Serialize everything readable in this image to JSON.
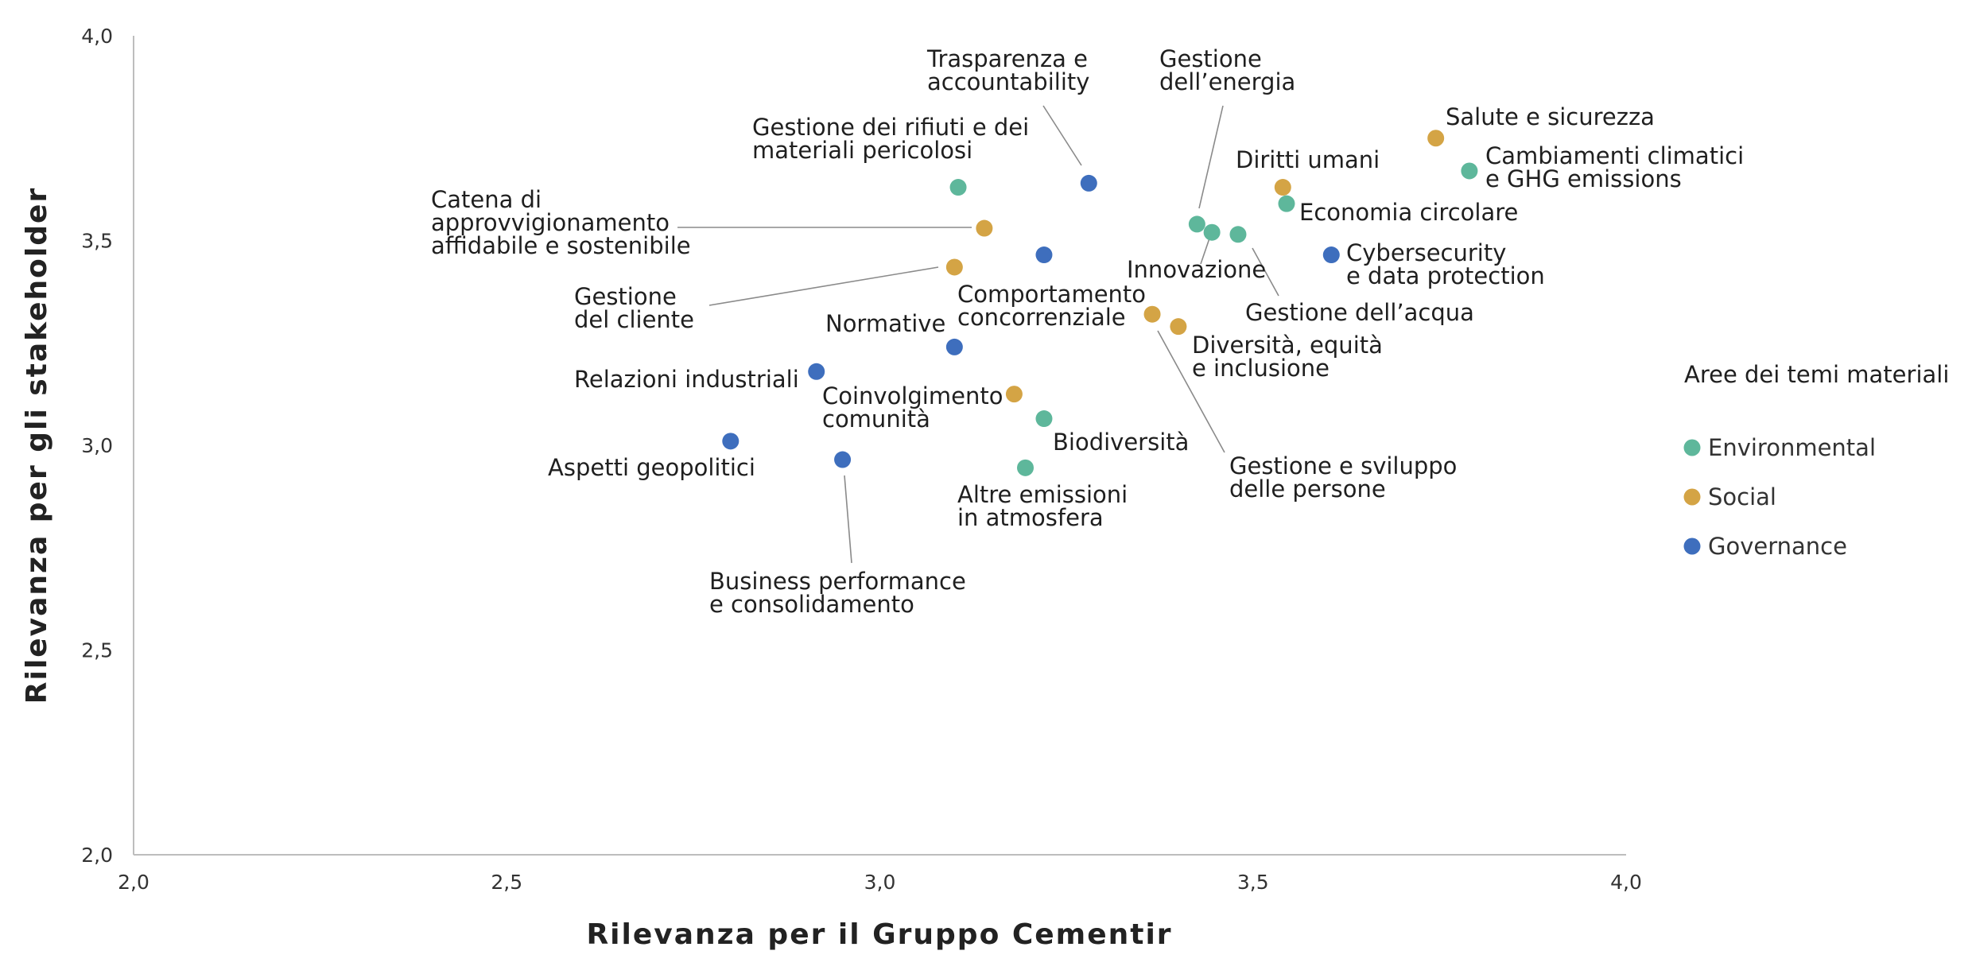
{
  "chart_data": {
    "type": "scatter",
    "title": "",
    "xlabel": "Rilevanza per il Gruppo Cementir",
    "ylabel": "Rilevanza per gli stakeholder",
    "xlim": [
      2.0,
      4.0
    ],
    "ylim": [
      2.0,
      4.0
    ],
    "x_ticks": [
      "2,0",
      "2,5",
      "3,0",
      "3,5",
      "4,0"
    ],
    "y_ticks": [
      "2,0",
      "2,5",
      "3,0",
      "3,5",
      "4,0"
    ],
    "grid": false,
    "legend": {
      "title": "Aree dei temi materiali",
      "placement": "right",
      "entries": [
        {
          "name": "Environmental",
          "color": "#5eb79b"
        },
        {
          "name": "Social",
          "color": "#d4a445"
        },
        {
          "name": "Governance",
          "color": "#3e6ebd"
        }
      ]
    },
    "points": [
      {
        "id": "salute",
        "lines": [
          "Salute e sicurezza"
        ],
        "x": 3.745,
        "y": 3.75,
        "area": "Social"
      },
      {
        "id": "clima",
        "lines": [
          "Cambiamenti climatici",
          "e GHG emissions"
        ],
        "x": 3.79,
        "y": 3.67,
        "area": "Environmental"
      },
      {
        "id": "diritti",
        "lines": [
          "Diritti umani"
        ],
        "x": 3.54,
        "y": 3.63,
        "area": "Social"
      },
      {
        "id": "economia",
        "lines": [
          "Economia circolare"
        ],
        "x": 3.545,
        "y": 3.59,
        "area": "Environmental"
      },
      {
        "id": "cyber",
        "lines": [
          "Cybersecurity",
          "e data protection"
        ],
        "x": 3.605,
        "y": 3.465,
        "area": "Governance"
      },
      {
        "id": "energia",
        "lines": [
          "Gestione",
          "dell’energia"
        ],
        "x": 3.425,
        "y": 3.54,
        "area": "Environmental"
      },
      {
        "id": "innovazione",
        "lines": [
          "Innovazione"
        ],
        "x": 3.445,
        "y": 3.52,
        "area": "Environmental"
      },
      {
        "id": "acqua",
        "lines": [
          "Gestione dell’acqua"
        ],
        "x": 3.48,
        "y": 3.515,
        "area": "Environmental"
      },
      {
        "id": "trasparenza",
        "lines": [
          "Trasparenza e",
          "accountability"
        ],
        "x": 3.28,
        "y": 3.64,
        "area": "Governance"
      },
      {
        "id": "rifiuti",
        "lines": [
          "Gestione dei rifiuti e dei",
          "materiali pericolosi"
        ],
        "x": 3.105,
        "y": 3.63,
        "area": "Environmental"
      },
      {
        "id": "catena",
        "lines": [
          "Catena di",
          "approvvigionamento",
          "affidabile e sostenibile"
        ],
        "x": 3.14,
        "y": 3.53,
        "area": "Social"
      },
      {
        "id": "concorrenziale",
        "lines": [
          "Comportamento",
          "concorrenziale"
        ],
        "x": 3.22,
        "y": 3.465,
        "area": "Governance"
      },
      {
        "id": "cliente",
        "lines": [
          "Gestione",
          "del cliente"
        ],
        "x": 3.1,
        "y": 3.435,
        "area": "Social"
      },
      {
        "id": "persone",
        "lines": [
          "Gestione e sviluppo",
          "delle persone"
        ],
        "x": 3.365,
        "y": 3.32,
        "area": "Social"
      },
      {
        "id": "diversita",
        "lines": [
          "Diversità, equità",
          "e inclusione"
        ],
        "x": 3.4,
        "y": 3.29,
        "area": "Social"
      },
      {
        "id": "normative",
        "lines": [
          "Normative"
        ],
        "x": 3.1,
        "y": 3.24,
        "area": "Governance"
      },
      {
        "id": "relazioni",
        "lines": [
          "Relazioni industriali"
        ],
        "x": 2.915,
        "y": 3.18,
        "area": "Governance"
      },
      {
        "id": "comunita",
        "lines": [
          "Coinvolgimento",
          "comunità"
        ],
        "x": 3.18,
        "y": 3.125,
        "area": "Social"
      },
      {
        "id": "biodiversita",
        "lines": [
          "Biodiversità"
        ],
        "x": 3.22,
        "y": 3.065,
        "area": "Environmental"
      },
      {
        "id": "geopolitici",
        "lines": [
          "Aspetti geopolitici"
        ],
        "x": 2.8,
        "y": 3.01,
        "area": "Governance"
      },
      {
        "id": "business",
        "lines": [
          "Business performance",
          "e consolidamento"
        ],
        "x": 2.95,
        "y": 2.965,
        "area": "Governance"
      },
      {
        "id": "emissioni",
        "lines": [
          "Altre emissioni",
          "in atmosfera"
        ],
        "x": 3.195,
        "y": 2.945,
        "area": "Environmental"
      }
    ]
  }
}
